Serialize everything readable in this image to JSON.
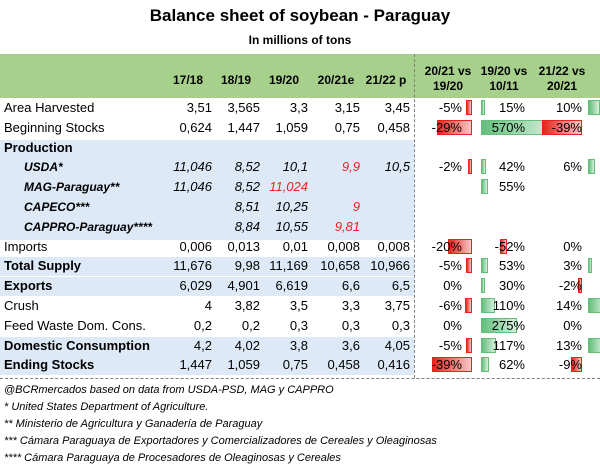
{
  "title": "Balance sheet of soybean - Paraguay",
  "subtitle": "In millions of tons",
  "columns": [
    "17/18",
    "18/19",
    "19/20",
    "20/21e",
    "21/22 p"
  ],
  "change_columns": [
    "20/21 vs\n19/20",
    "19/20 vs\n10/11",
    "21/22 vs\n20/21"
  ],
  "rows": [
    {
      "label": "Area Harvested",
      "style": "normal",
      "values": [
        "3,51",
        "3,565",
        "3,3",
        "3,15",
        "3,45"
      ],
      "changes": [
        "-5%",
        "15%",
        "10%"
      ]
    },
    {
      "label": "Beginning Stocks",
      "style": "normal",
      "values": [
        "0,624",
        "1,447",
        "1,059",
        "0,75",
        "0,458"
      ],
      "changes": [
        "-29%",
        "570%",
        "-39%"
      ]
    },
    {
      "label": "Production",
      "style": "bold",
      "values": [
        "",
        "",
        "",
        "",
        ""
      ],
      "changes": [
        "",
        "",
        ""
      ]
    },
    {
      "label": "USDA*",
      "style": "sub",
      "values": [
        "11,046",
        "8,52",
        "10,1",
        "9,9",
        "10,5"
      ],
      "red": [
        3
      ],
      "changes": [
        "-2%",
        "42%",
        "6%"
      ]
    },
    {
      "label": "MAG-Paraguay**",
      "style": "sub",
      "values": [
        "11,046",
        "8,52",
        "11,024",
        "",
        ""
      ],
      "red": [
        2
      ],
      "changes": [
        "",
        "55%",
        ""
      ]
    },
    {
      "label": "CAPECO***",
      "style": "sub",
      "values": [
        "",
        "8,51",
        "10,25",
        "9",
        ""
      ],
      "red": [
        3
      ],
      "changes": [
        "",
        "",
        ""
      ]
    },
    {
      "label": "CAPPRO-Paraguay****",
      "style": "sub",
      "values": [
        "",
        "8,84",
        "10,55",
        "9,81",
        ""
      ],
      "red": [
        3
      ],
      "changes": [
        "",
        "",
        ""
      ]
    },
    {
      "label": "Imports",
      "style": "normal",
      "values": [
        "0,006",
        "0,013",
        "0,01",
        "0,008",
        "0,008"
      ],
      "changes": [
        "-20%",
        "-52%",
        "0%"
      ]
    },
    {
      "label": "Total Supply",
      "style": "bold",
      "values": [
        "11,676",
        "9,98",
        "11,169",
        "10,658",
        "10,966"
      ],
      "changes": [
        "-5%",
        "53%",
        "3%"
      ]
    },
    {
      "label": "Exports",
      "style": "bold",
      "values": [
        "6,029",
        "4,901",
        "6,619",
        "6,6",
        "6,5"
      ],
      "changes": [
        "0%",
        "30%",
        "-2%"
      ]
    },
    {
      "label": "Crush",
      "style": "normal",
      "values": [
        "4",
        "3,82",
        "3,5",
        "3,3",
        "3,75"
      ],
      "changes": [
        "-6%",
        "110%",
        "14%"
      ]
    },
    {
      "label": "Feed Waste Dom. Cons.",
      "style": "normal",
      "values": [
        "0,2",
        "0,2",
        "0,3",
        "0,3",
        "0,3"
      ],
      "changes": [
        "0%",
        "275%",
        "0%"
      ]
    },
    {
      "label": "Domestic Consumption",
      "style": "bold",
      "values": [
        "4,2",
        "4,02",
        "3,8",
        "3,6",
        "4,05"
      ],
      "changes": [
        "-5%",
        "117%",
        "13%"
      ]
    },
    {
      "label": "Ending Stocks",
      "style": "bold",
      "values": [
        "1,447",
        "1,059",
        "0,75",
        "0,458",
        "0,416"
      ],
      "changes": [
        "-39%",
        "62%",
        "-9%"
      ]
    }
  ],
  "notes": [
    "@BCRmercados based on data from USDA-PSD, MAG y CAPPRO",
    "* United States Department of Agriculture.",
    "** Ministerio de Agricultura y Ganadería de Paraguay",
    "*** Cámara Paraguaya de Exportadores y Comercializadores de Cereales y Oleaginosas",
    "**** Cámara Paraguaya de Procesadores de Oleaginosas y Cereales"
  ],
  "colors": {
    "header_bg": "#a8d08d",
    "band_bg": "#dde9f7",
    "negative": "#e8231b",
    "positive": "#63be7b"
  }
}
